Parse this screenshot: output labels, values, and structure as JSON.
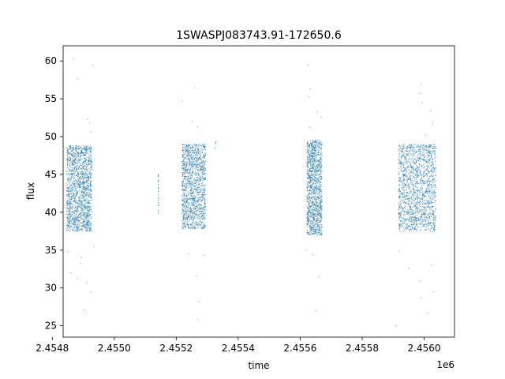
{
  "chart_data": {
    "type": "scatter",
    "title": "1SWASPJ083743.91-172650.6",
    "xlabel": "time",
    "ylabel": "flux",
    "x_offset_label": "1e6",
    "xlim": [
      2454835,
      2456098
    ],
    "ylim": [
      23.5,
      62.0
    ],
    "x_ticks": [
      2454800,
      2455000,
      2455200,
      2455400,
      2455600,
      2455800,
      2456000
    ],
    "x_tick_labels": [
      "2.4548",
      "2.4550",
      "2.4552",
      "2.4554",
      "2.4556",
      "2.4558",
      "2.4560"
    ],
    "y_ticks": [
      25,
      30,
      35,
      40,
      45,
      50,
      55,
      60
    ],
    "y_tick_labels": [
      "25",
      "30",
      "35",
      "40",
      "45",
      "50",
      "55",
      "60"
    ],
    "grid": false,
    "legend": "none",
    "marker_color": "#1f77b4",
    "series": [
      {
        "segments": [
          {
            "x_start": 2454847,
            "x_end": 2454928,
            "y_low": 37.5,
            "y_high": 48.8,
            "count": 1500
          },
          {
            "x_start": 2455142,
            "x_end": 2455144,
            "y_low": 39.5,
            "y_high": 45.0,
            "count": 25
          },
          {
            "x_start": 2455219,
            "x_end": 2455295,
            "y_low": 37.8,
            "y_high": 49.0,
            "count": 1300
          },
          {
            "x_start": 2455326,
            "x_end": 2455328,
            "y_low": 48.2,
            "y_high": 49.4,
            "count": 6
          },
          {
            "x_start": 2455622,
            "x_end": 2455671,
            "y_low": 37.0,
            "y_high": 49.5,
            "count": 1200
          },
          {
            "x_start": 2455918,
            "x_end": 2456038,
            "y_low": 37.5,
            "y_high": 49.0,
            "count": 1500
          }
        ],
        "points": [
          [
            2454868,
            60.2
          ],
          [
            2454882,
            57.6
          ],
          [
            2454915,
            52.3
          ],
          [
            2454920,
            51.8
          ],
          [
            2454930,
            59.4
          ],
          [
            2454895,
            34.0
          ],
          [
            2454860,
            32.0
          ],
          [
            2454880,
            31.3
          ],
          [
            2454910,
            30.7
          ],
          [
            2454925,
            29.5
          ],
          [
            2454905,
            27.1
          ],
          [
            2454850,
            34.8
          ],
          [
            2454935,
            35.5
          ],
          [
            2454890,
            33.2
          ],
          [
            2454925,
            50.6
          ],
          [
            2455221,
            54.7
          ],
          [
            2455260,
            56.4
          ],
          [
            2455250,
            52.0
          ],
          [
            2455270,
            51.3
          ],
          [
            2455240,
            34.5
          ],
          [
            2455265,
            31.6
          ],
          [
            2455275,
            28.2
          ],
          [
            2455268,
            25.8
          ],
          [
            2455290,
            34.3
          ],
          [
            2455624,
            59.5
          ],
          [
            2455632,
            56.3
          ],
          [
            2455628,
            55.3
          ],
          [
            2455655,
            53.3
          ],
          [
            2455668,
            52.6
          ],
          [
            2455620,
            35.0
          ],
          [
            2455640,
            34.4
          ],
          [
            2455660,
            31.5
          ],
          [
            2455650,
            27.0
          ],
          [
            2455630,
            51.2
          ],
          [
            2455990,
            56.9
          ],
          [
            2455985,
            55.7
          ],
          [
            2455995,
            54.5
          ],
          [
            2456020,
            53.4
          ],
          [
            2456028,
            51.7
          ],
          [
            2456005,
            50.1
          ],
          [
            2455920,
            34.8
          ],
          [
            2455950,
            32.6
          ],
          [
            2455985,
            30.9
          ],
          [
            2455990,
            28.7
          ],
          [
            2455910,
            25.0
          ],
          [
            2456030,
            29.5
          ],
          [
            2456025,
            33.0
          ],
          [
            2456010,
            26.7
          ]
        ]
      }
    ]
  }
}
